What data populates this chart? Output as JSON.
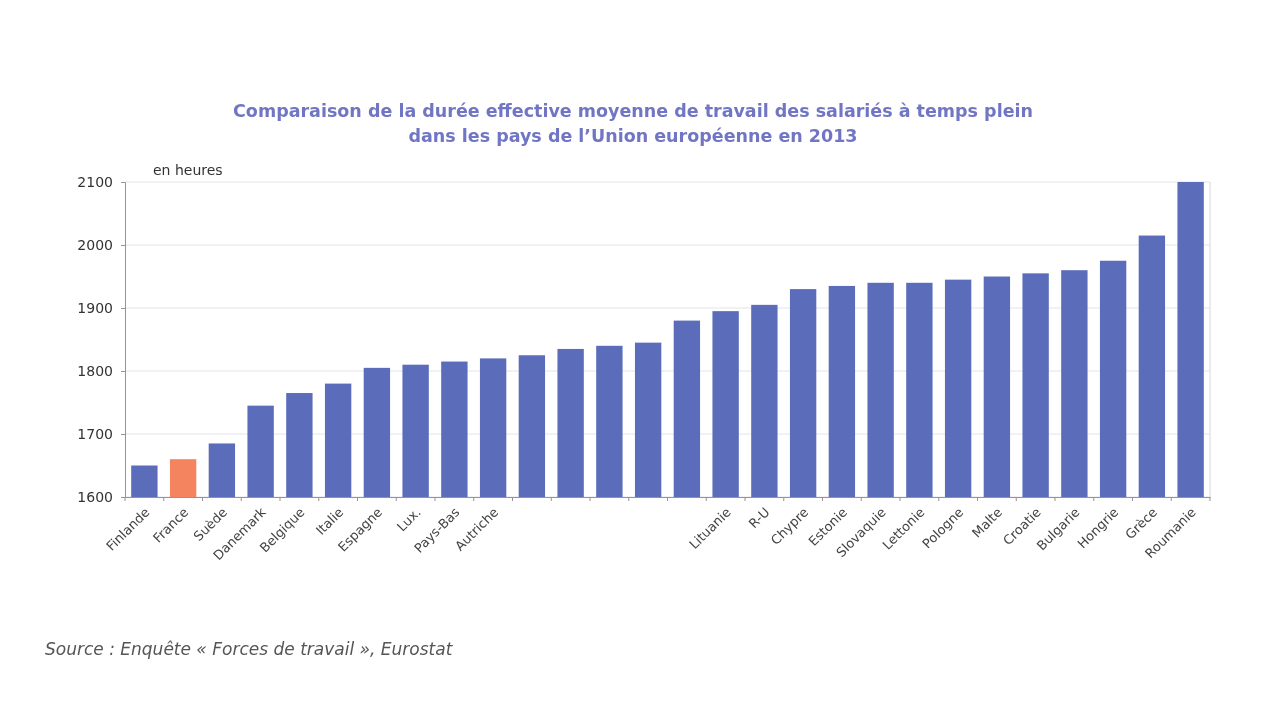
{
  "chart_data": {
    "type": "bar",
    "title": "Comparaison de la durée effective moyenne de travail des salariés à temps plein\ndans les pays de l’Union européenne en 2013",
    "ylabel": "en heures",
    "categories": [
      "Finlande",
      "France",
      "Suède",
      "Danemark",
      "Belgique",
      "Italie",
      "Espagne",
      "Lux.",
      "Pays-Bas",
      "Autriche",
      null,
      null,
      null,
      null,
      null,
      "Lituanie",
      "R-U",
      "Chypre",
      "Estonie",
      "Slovaquie",
      "Lettonie",
      "Pologne",
      "Malte",
      "Croatie",
      "Bulgarie",
      "Hongrie",
      "Grèce",
      "Roumanie"
    ],
    "values": [
      1650,
      1660,
      1685,
      1745,
      1765,
      1780,
      1805,
      1810,
      1815,
      1820,
      1825,
      1835,
      1840,
      1845,
      1880,
      1895,
      1905,
      1930,
      1935,
      1940,
      1940,
      1945,
      1950,
      1955,
      1960,
      1975,
      2015,
      2100
    ],
    "colors": [
      "#5a6cba",
      "#f4845f",
      "#5a6cba",
      "#5a6cba",
      "#5a6cba",
      "#5a6cba",
      "#5a6cba",
      "#5a6cba",
      "#5a6cba",
      "#5a6cba",
      "#5a6cba",
      "#5a6cba",
      "#5a6cba",
      "#5a6cba",
      "#5a6cba",
      "#5a6cba",
      "#5a6cba",
      "#5a6cba",
      "#5a6cba",
      "#5a6cba",
      "#5a6cba",
      "#5a6cba",
      "#5a6cba",
      "#5a6cba",
      "#5a6cba",
      "#5a6cba",
      "#5a6cba",
      "#5a6cba"
    ],
    "ylim": [
      1600,
      2100
    ],
    "yticks": [
      1600,
      1700,
      1800,
      1900,
      2000,
      2100
    ],
    "grid": "y",
    "annotations": [
      "Source : Enquête « Forces de travail », Eurostat"
    ]
  }
}
